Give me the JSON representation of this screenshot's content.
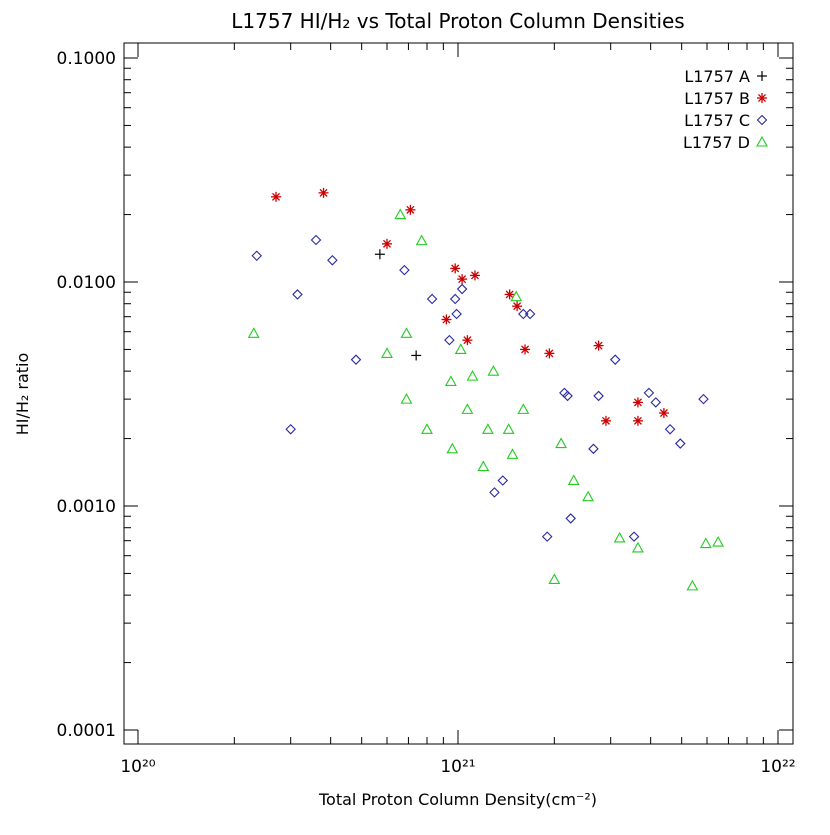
{
  "chart_data": {
    "type": "scatter",
    "title": "L1757 HI/H₂ vs Total Proton Column Densities",
    "xlabel": "Total Proton Column Density(cm⁻²)",
    "ylabel": "HI/H₂ ratio",
    "xscale": "log",
    "yscale": "log",
    "xlim": [
      1e+20,
      1e+22
    ],
    "ylim": [
      0.0001,
      0.1
    ],
    "x_tick_labels": [
      "10²⁰",
      "10²¹",
      "10²²"
    ],
    "y_tick_labels": [
      "0.1000",
      "0.0100",
      "0.0010",
      "0.0001"
    ],
    "legend_position": "top-right",
    "series": [
      {
        "name": "L1757 A",
        "marker": "plus",
        "color": "#000000",
        "points": [
          [
            5.7e+20,
            0.0133
          ],
          [
            7.4e+20,
            0.0047
          ]
        ]
      },
      {
        "name": "L1757 B",
        "marker": "asterisk",
        "color": "#cc0000",
        "points": [
          [
            2.7e+20,
            0.024
          ],
          [
            3.8e+20,
            0.025
          ],
          [
            6e+20,
            0.0148
          ],
          [
            7.1e+20,
            0.021
          ],
          [
            9.2e+20,
            0.0068
          ],
          [
            9.8e+20,
            0.0115
          ],
          [
            1.03e+21,
            0.0103
          ],
          [
            1.07e+21,
            0.0055
          ],
          [
            1.13e+21,
            0.0107
          ],
          [
            1.45e+21,
            0.0088
          ],
          [
            1.53e+21,
            0.0078
          ],
          [
            1.62e+21,
            0.005
          ],
          [
            1.93e+21,
            0.0048
          ],
          [
            2.75e+21,
            0.0052
          ],
          [
            2.9e+21,
            0.0024
          ],
          [
            3.65e+21,
            0.0029
          ],
          [
            3.65e+21,
            0.0024
          ],
          [
            4.4e+21,
            0.0026
          ]
        ]
      },
      {
        "name": "L1757 C",
        "marker": "diamond",
        "color": "#2a2aa0",
        "points": [
          [
            2.35e+20,
            0.0131
          ],
          [
            3e+20,
            0.0022
          ],
          [
            3.15e+20,
            0.0088
          ],
          [
            3.6e+20,
            0.0154
          ],
          [
            4.05e+20,
            0.0125
          ],
          [
            4.8e+20,
            0.0045
          ],
          [
            6.8e+20,
            0.0113
          ],
          [
            8.3e+20,
            0.0084
          ],
          [
            9.4e+20,
            0.0055
          ],
          [
            9.8e+20,
            0.0084
          ],
          [
            9.9e+20,
            0.0072
          ],
          [
            1.03e+21,
            0.0093
          ],
          [
            1.3e+21,
            0.00115
          ],
          [
            1.38e+21,
            0.0013
          ],
          [
            1.6e+21,
            0.0072
          ],
          [
            1.68e+21,
            0.0072
          ],
          [
            1.9e+21,
            0.00073
          ],
          [
            2.15e+21,
            0.0032
          ],
          [
            2.2e+21,
            0.0031
          ],
          [
            2.25e+21,
            0.00088
          ],
          [
            2.65e+21,
            0.0018
          ],
          [
            2.75e+21,
            0.0031
          ],
          [
            3.1e+21,
            0.0045
          ],
          [
            3.55e+21,
            0.00073
          ],
          [
            3.95e+21,
            0.0032
          ],
          [
            4.15e+21,
            0.0029
          ],
          [
            4.6e+21,
            0.0022
          ],
          [
            4.95e+21,
            0.0019
          ],
          [
            5.85e+21,
            0.003
          ]
        ]
      },
      {
        "name": "L1757 D",
        "marker": "triangle",
        "color": "#22cc22",
        "points": [
          [
            2.3e+20,
            0.0059
          ],
          [
            6e+20,
            0.0048
          ],
          [
            6.6e+20,
            0.02
          ],
          [
            6.9e+20,
            0.0059
          ],
          [
            6.9e+20,
            0.003
          ],
          [
            7.7e+20,
            0.0153
          ],
          [
            8e+20,
            0.0022
          ],
          [
            9.5e+20,
            0.0036
          ],
          [
            9.6e+20,
            0.0018
          ],
          [
            1.02e+21,
            0.005
          ],
          [
            1.07e+21,
            0.0027
          ],
          [
            1.11e+21,
            0.0038
          ],
          [
            1.2e+21,
            0.0015
          ],
          [
            1.24e+21,
            0.0022
          ],
          [
            1.29e+21,
            0.004
          ],
          [
            1.44e+21,
            0.0022
          ],
          [
            1.48e+21,
            0.0017
          ],
          [
            1.52e+21,
            0.0086
          ],
          [
            1.6e+21,
            0.0027
          ],
          [
            2e+21,
            0.00047
          ],
          [
            2.1e+21,
            0.0019
          ],
          [
            2.3e+21,
            0.0013
          ],
          [
            2.55e+21,
            0.0011
          ],
          [
            3.2e+21,
            0.00072
          ],
          [
            3.65e+21,
            0.00065
          ],
          [
            5.4e+21,
            0.00044
          ],
          [
            5.95e+21,
            0.00068
          ],
          [
            6.5e+21,
            0.00069
          ]
        ]
      }
    ]
  }
}
